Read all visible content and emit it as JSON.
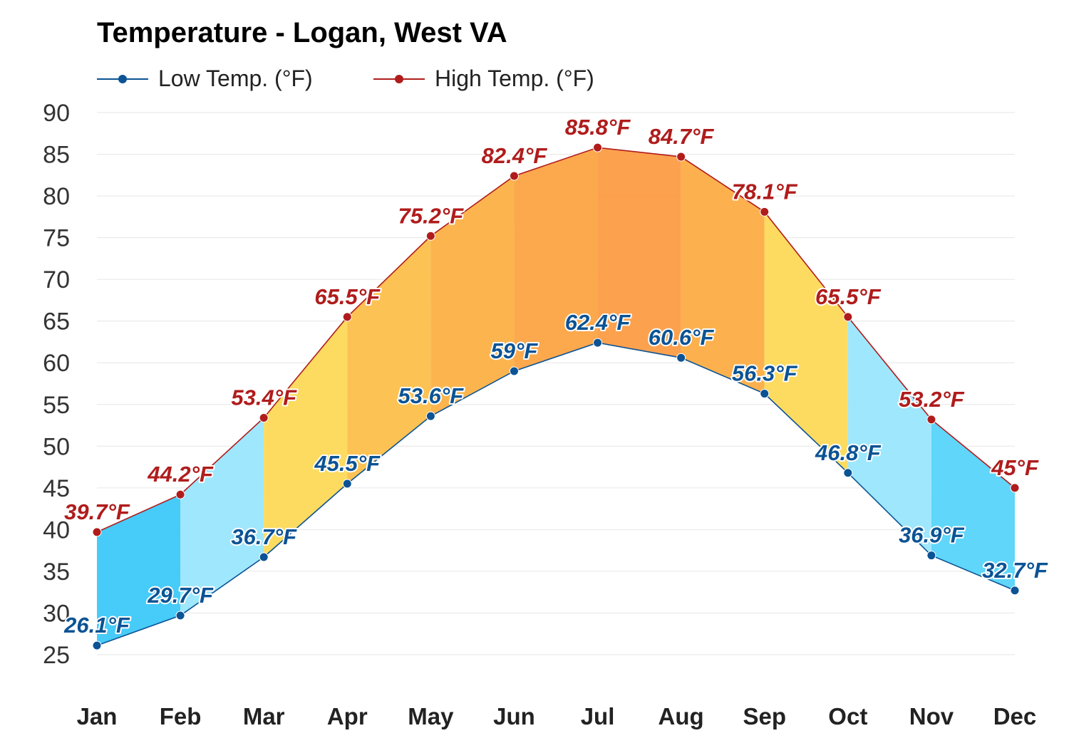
{
  "chart_data": {
    "type": "line",
    "title": "Temperature - Logan, West VA",
    "categories": [
      "Jan",
      "Feb",
      "Mar",
      "Apr",
      "May",
      "Jun",
      "Jul",
      "Aug",
      "Sep",
      "Oct",
      "Nov",
      "Dec"
    ],
    "series": [
      {
        "name": "Low Temp. (°F)",
        "color": "#0b5394",
        "values": [
          26.1,
          29.7,
          36.7,
          45.5,
          53.6,
          59,
          62.4,
          60.6,
          56.3,
          46.8,
          36.9,
          32.7
        ],
        "labels": [
          "26.1°F",
          "29.7°F",
          "36.7°F",
          "45.5°F",
          "53.6°F",
          "59°F",
          "62.4°F",
          "60.6°F",
          "56.3°F",
          "46.8°F",
          "36.9°F",
          "32.7°F"
        ]
      },
      {
        "name": "High Temp. (°F)",
        "color": "#b01c1c",
        "values": [
          39.7,
          44.2,
          53.4,
          65.5,
          75.2,
          82.4,
          85.8,
          84.7,
          78.1,
          65.5,
          53.2,
          45
        ],
        "labels": [
          "39.7°F",
          "44.2°F",
          "53.4°F",
          "65.5°F",
          "75.2°F",
          "82.4°F",
          "85.8°F",
          "84.7°F",
          "78.1°F",
          "65.5°F",
          "53.2°F",
          "45°F"
        ]
      }
    ],
    "band_colors": [
      "#3dc8f8",
      "#9ae6fc",
      "#fcd957",
      "#fcbf4a",
      "#fcb144",
      "#fca343",
      "#fc9c44",
      "#fcad45",
      "#fcd957",
      "#9ae6fc",
      "#56d4fa",
      "#56d4fa"
    ],
    "yticks": [
      "25",
      "30",
      "35",
      "40",
      "45",
      "50",
      "55",
      "60",
      "65",
      "70",
      "75",
      "80",
      "85",
      "90"
    ],
    "ylim": [
      25,
      90
    ],
    "grid": true,
    "legend_position": "top-left"
  }
}
